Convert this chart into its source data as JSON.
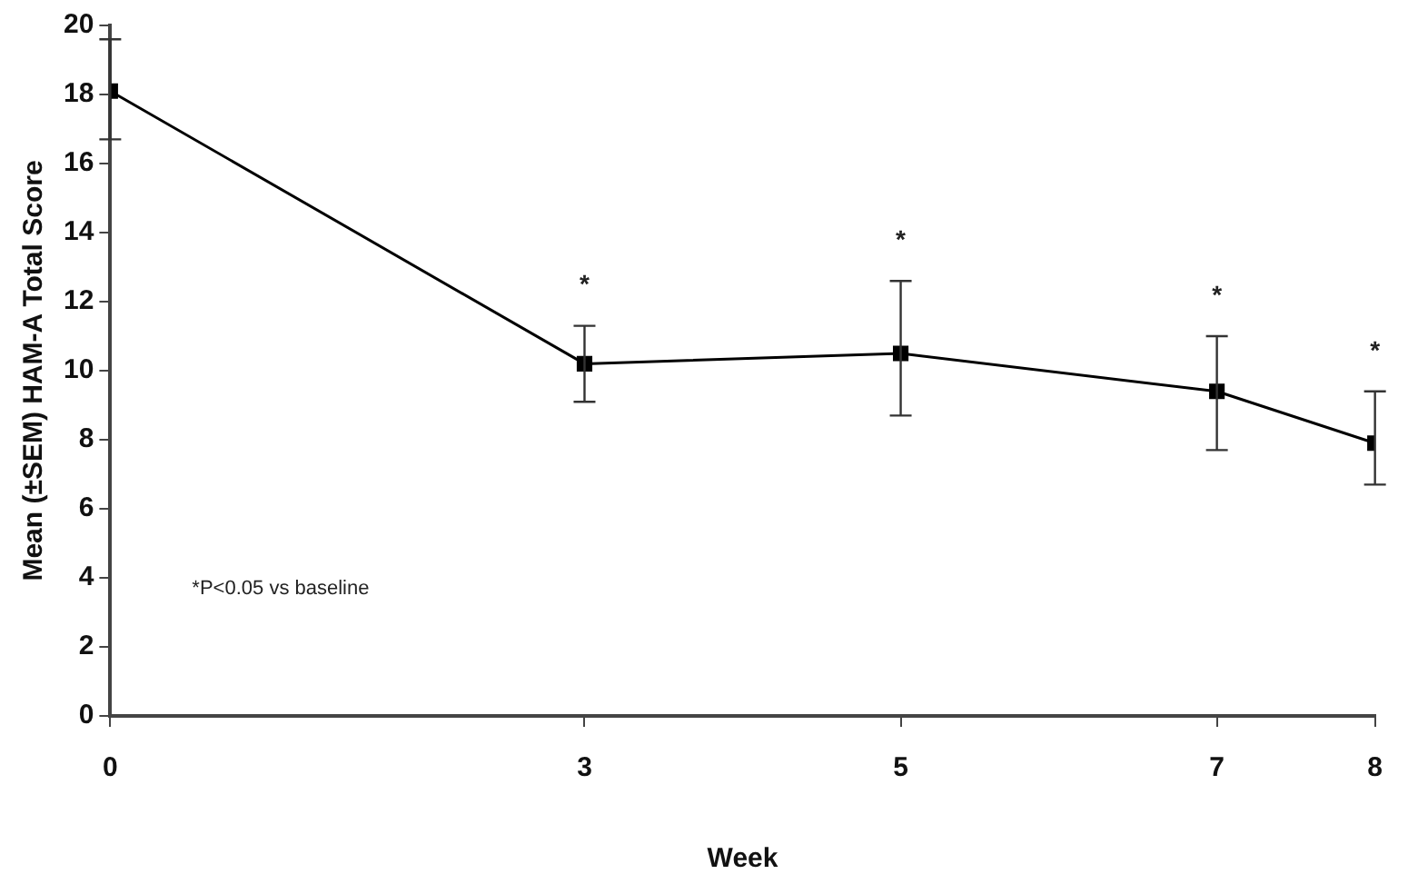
{
  "chart_data": {
    "type": "line",
    "xlabel": "Week",
    "ylabel": "Mean (±SEM) HAM-A Total Score",
    "x": [
      0,
      3,
      5,
      7,
      8
    ],
    "series": [
      {
        "color": "#000000",
        "values": [
          18.1,
          10.2,
          10.5,
          9.4,
          7.9
        ],
        "errors": [
          [
            16.7,
            19.6
          ],
          [
            9.1,
            11.3
          ],
          [
            8.7,
            12.6
          ],
          [
            7.7,
            11.0
          ],
          [
            6.7,
            9.4
          ]
        ]
      }
    ],
    "xlim": [
      0,
      8
    ],
    "xticks": [
      0,
      3,
      5,
      7,
      8
    ],
    "ylim": [
      0,
      20
    ],
    "yticks": [
      0,
      2,
      4,
      6,
      8,
      10,
      12,
      14,
      16,
      18,
      20
    ],
    "grid": false,
    "legend": false,
    "marker": "square",
    "line_style": "solid",
    "annotations": [
      "*",
      "*",
      "*",
      "*",
      "*P<0.05 vs baseline"
    ]
  }
}
